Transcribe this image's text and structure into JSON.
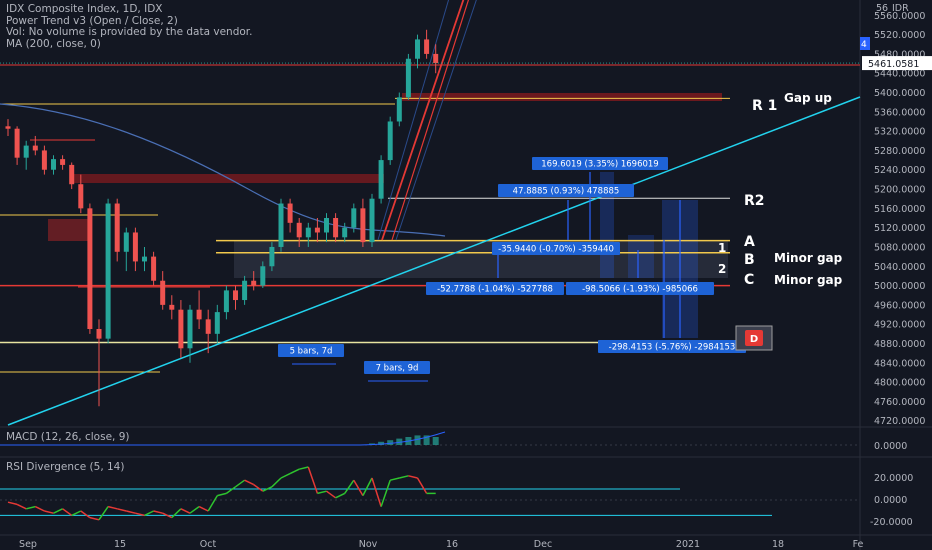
{
  "legend": {
    "line1": "IDX Composite Index, 1D, IDX",
    "line2": "Power Trend v3 (Open / Close, 2)",
    "line3": "Vol: No volume is provided by the data vendor.",
    "line4": "MA (200, close, 0)"
  },
  "header": {
    "counter": "56",
    "currency": "IDR",
    "last_price": "5461.0581",
    "side_tag": "4"
  },
  "price_axis": {
    "ticks": [
      "5560.0000",
      "5520.0000",
      "5480.0000",
      "5440.0000",
      "5400.0000",
      "5360.0000",
      "5320.0000",
      "5280.0000",
      "5240.0000",
      "5200.0000",
      "5160.0000",
      "5120.0000",
      "5080.0000",
      "5040.0000",
      "5000.0000",
      "4960.0000",
      "4920.0000",
      "4880.0000",
      "4840.0000",
      "4800.0000",
      "4760.0000",
      "4720.0000"
    ]
  },
  "time_axis": {
    "ticks": [
      "Sep",
      "15",
      "Oct",
      "Nov",
      "16",
      "Dec",
      "2021",
      "18",
      "Fe"
    ]
  },
  "annotations": {
    "gap_up": "Gap up",
    "r1": "R 1",
    "r2": "R2",
    "a": "A",
    "b": "B",
    "c": "C",
    "one": "1",
    "two": "2",
    "minor_gap_1": "Minor gap",
    "minor_gap_2": "Minor gap",
    "bars_5": "5 bars, 7d",
    "bars_7": "7 bars, 9d",
    "measure_up_1": "169.6019 (3.35%) 1696019",
    "measure_up_2": "47.8885 (0.93%) 478885",
    "measure_dn_1": "-35.9440 (-0.70%) -359440",
    "measure_dn_2": "-52.7788 (-1.04%) -527788",
    "measure_dn_3": "-98.5066 (-1.93%) -985066",
    "measure_dn_4": "-298.4153 (-5.76%) -2984153",
    "d_marker": "D"
  },
  "macd": {
    "title": "MACD (12, 26, close, 9)",
    "tick": "0.0000"
  },
  "rsi": {
    "title": "RSI Divergence (5, 14)",
    "ticks": [
      "20.0000",
      "0.0000",
      "-20.0000"
    ]
  },
  "colors": {
    "bg": "#131722",
    "up": "#26a69a",
    "down": "#ef5350",
    "cyan": "#22d3ee",
    "yellow": "#f2c94c",
    "red_line": "#e53935",
    "ma": "#4a6fb5",
    "rsi_up": "#2ec42e",
    "rsi_down": "#e53935"
  },
  "chart_data": {
    "type": "candlestick",
    "series_name": "IDX Composite Index",
    "ylim": [
      4680,
      5600
    ],
    "candles": [
      {
        "o": 5330,
        "h": 5345,
        "l": 5310,
        "c": 5325
      },
      {
        "o": 5325,
        "h": 5330,
        "l": 5250,
        "c": 5265
      },
      {
        "o": 5265,
        "h": 5300,
        "l": 5240,
        "c": 5290
      },
      {
        "o": 5290,
        "h": 5310,
        "l": 5270,
        "c": 5280
      },
      {
        "o": 5280,
        "h": 5290,
        "l": 5230,
        "c": 5240
      },
      {
        "o": 5240,
        "h": 5270,
        "l": 5230,
        "c": 5262
      },
      {
        "o": 5262,
        "h": 5270,
        "l": 5240,
        "c": 5250
      },
      {
        "o": 5250,
        "h": 5255,
        "l": 5200,
        "c": 5210
      },
      {
        "o": 5210,
        "h": 5230,
        "l": 5150,
        "c": 5160
      },
      {
        "o": 5160,
        "h": 5170,
        "l": 4900,
        "c": 4910
      },
      {
        "o": 4910,
        "h": 4930,
        "l": 4750,
        "c": 4890
      },
      {
        "o": 4890,
        "h": 5180,
        "l": 4880,
        "c": 5170
      },
      {
        "o": 5170,
        "h": 5180,
        "l": 5050,
        "c": 5070
      },
      {
        "o": 5070,
        "h": 5120,
        "l": 5030,
        "c": 5110
      },
      {
        "o": 5110,
        "h": 5120,
        "l": 5030,
        "c": 5050
      },
      {
        "o": 5050,
        "h": 5080,
        "l": 5030,
        "c": 5060
      },
      {
        "o": 5060,
        "h": 5070,
        "l": 5000,
        "c": 5010
      },
      {
        "o": 5010,
        "h": 5030,
        "l": 4950,
        "c": 4960
      },
      {
        "o": 4960,
        "h": 4980,
        "l": 4930,
        "c": 4950
      },
      {
        "o": 4950,
        "h": 4970,
        "l": 4850,
        "c": 4870
      },
      {
        "o": 4870,
        "h": 4960,
        "l": 4840,
        "c": 4950
      },
      {
        "o": 4950,
        "h": 4990,
        "l": 4910,
        "c": 4930
      },
      {
        "o": 4930,
        "h": 4950,
        "l": 4860,
        "c": 4900
      },
      {
        "o": 4900,
        "h": 4960,
        "l": 4880,
        "c": 4945
      },
      {
        "o": 4945,
        "h": 5000,
        "l": 4930,
        "c": 4990
      },
      {
        "o": 4990,
        "h": 5000,
        "l": 4950,
        "c": 4970
      },
      {
        "o": 4970,
        "h": 5020,
        "l": 4960,
        "c": 5010
      },
      {
        "o": 5010,
        "h": 5030,
        "l": 4990,
        "c": 5000
      },
      {
        "o": 5000,
        "h": 5050,
        "l": 4995,
        "c": 5040
      },
      {
        "o": 5040,
        "h": 5090,
        "l": 5030,
        "c": 5080
      },
      {
        "o": 5080,
        "h": 5180,
        "l": 5070,
        "c": 5170
      },
      {
        "o": 5170,
        "h": 5180,
        "l": 5110,
        "c": 5130
      },
      {
        "o": 5130,
        "h": 5140,
        "l": 5080,
        "c": 5100
      },
      {
        "o": 5100,
        "h": 5130,
        "l": 5080,
        "c": 5120
      },
      {
        "o": 5120,
        "h": 5140,
        "l": 5090,
        "c": 5110
      },
      {
        "o": 5110,
        "h": 5150,
        "l": 5090,
        "c": 5140
      },
      {
        "o": 5140,
        "h": 5150,
        "l": 5090,
        "c": 5100
      },
      {
        "o": 5100,
        "h": 5130,
        "l": 5090,
        "c": 5120
      },
      {
        "o": 5120,
        "h": 5170,
        "l": 5110,
        "c": 5160
      },
      {
        "o": 5160,
        "h": 5180,
        "l": 5080,
        "c": 5090
      },
      {
        "o": 5090,
        "h": 5190,
        "l": 5080,
        "c": 5180
      },
      {
        "o": 5180,
        "h": 5270,
        "l": 5170,
        "c": 5260
      },
      {
        "o": 5260,
        "h": 5350,
        "l": 5250,
        "c": 5340
      },
      {
        "o": 5340,
        "h": 5400,
        "l": 5330,
        "c": 5390
      },
      {
        "o": 5390,
        "h": 5480,
        "l": 5385,
        "c": 5470
      },
      {
        "o": 5470,
        "h": 5520,
        "l": 5450,
        "c": 5510
      },
      {
        "o": 5510,
        "h": 5530,
        "l": 5470,
        "c": 5480
      },
      {
        "o": 5480,
        "h": 5500,
        "l": 5440,
        "c": 5461
      }
    ],
    "levels": [
      {
        "name": "R1",
        "price": 5388
      },
      {
        "name": "R2",
        "price": 5181
      },
      {
        "name": "A",
        "price": 5093
      },
      {
        "name": "B",
        "price": 5068
      },
      {
        "name": "C",
        "price": 5000
      },
      {
        "name": "D",
        "price": 4882
      }
    ],
    "macd_hist": [
      0,
      0,
      0,
      0,
      0,
      0,
      0,
      0,
      0,
      0,
      0,
      0,
      0,
      0,
      0,
      0,
      0,
      0,
      0,
      0,
      0,
      0,
      0,
      0,
      0,
      0,
      0,
      0,
      0,
      0,
      0,
      0,
      0,
      0,
      0,
      0,
      0,
      0,
      0,
      0,
      1,
      2,
      3,
      4,
      5,
      6,
      6,
      5
    ],
    "rsi": [
      -2,
      -4,
      -8,
      -6,
      -10,
      -12,
      -8,
      -14,
      -10,
      -16,
      -18,
      -6,
      -8,
      -10,
      -12,
      -14,
      -10,
      -12,
      -16,
      -8,
      -12,
      -6,
      -10,
      4,
      6,
      12,
      18,
      14,
      8,
      12,
      20,
      24,
      28,
      30,
      6,
      8,
      2,
      6,
      18,
      4,
      20,
      -6,
      18,
      20,
      22,
      20,
      6,
      6
    ]
  }
}
